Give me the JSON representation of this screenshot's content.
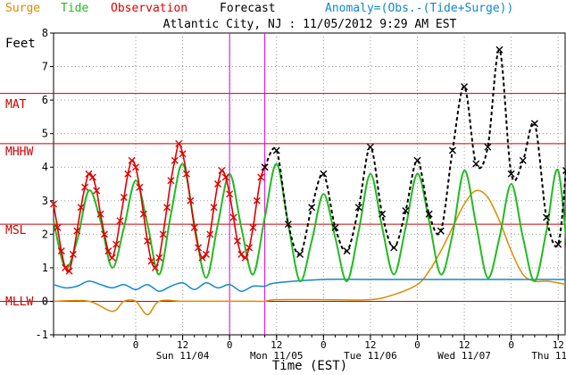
{
  "legend": {
    "surge": {
      "label": "Surge",
      "color": "#e08a00"
    },
    "tide": {
      "label": "Tide",
      "color": "#22bb22"
    },
    "observation": {
      "label": "Observation",
      "color": "#dd0000"
    },
    "forecast": {
      "label": "Forecast",
      "color": "#000000"
    },
    "anomaly": {
      "label": "Anomaly=(Obs.-(Tide+Surge))",
      "color": "#1188cc"
    }
  },
  "chart_data": {
    "type": "line",
    "title": "Atlantic City, NJ : 11/05/2012 9:29 AM EST",
    "ylabel": "Feet",
    "xlabel": "Time (EST)",
    "ylim": [
      -1,
      8
    ],
    "xlim_hours": [
      -21,
      110
    ],
    "yticks": [
      "-1",
      "0",
      "1",
      "2",
      "3",
      "4",
      "5",
      "6",
      "7",
      "8"
    ],
    "xticks": [
      {
        "hour": 0,
        "label": "0"
      },
      {
        "hour": 12,
        "label": "12"
      },
      {
        "hour": 24,
        "label": "0"
      },
      {
        "hour": 36,
        "label": "12"
      },
      {
        "hour": 48,
        "label": "0"
      },
      {
        "hour": 60,
        "label": "12"
      },
      {
        "hour": 72,
        "label": "0"
      },
      {
        "hour": 84,
        "label": "12"
      },
      {
        "hour": 96,
        "label": "0"
      },
      {
        "hour": 108,
        "label": "12"
      }
    ],
    "day_labels": [
      {
        "hour": 12,
        "label": "Sun 11/04"
      },
      {
        "hour": 36,
        "label": "Mon 11/05"
      },
      {
        "hour": 60,
        "label": "Tue 11/06"
      },
      {
        "hour": 84,
        "label": "Wed 11/07"
      },
      {
        "hour": 108,
        "label": "Thu 11/08"
      }
    ],
    "reference_lines": [
      {
        "label": "MAT",
        "value": 6.2,
        "color": "#cc0000"
      },
      {
        "label": "MHHW",
        "value": 4.7,
        "color": "#cc0000"
      },
      {
        "label": "MSL",
        "value": 2.3,
        "color": "#cc0000"
      },
      {
        "label": "MLLW",
        "value": 0.0,
        "color": "#cc0000"
      }
    ],
    "vertical_markers": [
      24,
      33
    ],
    "series": [
      {
        "name": "Tide",
        "color": "#22bb22",
        "x": [
          -21,
          -18,
          -15,
          -12,
          -9,
          -6,
          -3,
          0,
          3,
          6,
          9,
          12,
          15,
          18,
          21,
          24,
          27,
          30,
          33,
          36,
          39,
          42,
          45,
          48,
          51,
          54,
          57,
          60,
          63,
          66,
          69,
          72,
          75,
          78,
          81,
          84,
          87,
          90,
          93,
          96,
          99,
          102,
          105,
          108,
          111
        ],
        "y": [
          2.4,
          1.0,
          1.8,
          3.3,
          2.4,
          1.0,
          2.2,
          3.6,
          2.3,
          0.8,
          2.6,
          4.1,
          2.3,
          0.7,
          2.3,
          3.8,
          2.2,
          0.8,
          2.5,
          4.1,
          2.3,
          0.6,
          1.8,
          3.2,
          1.9,
          0.6,
          2.1,
          3.8,
          2.2,
          0.8,
          2.2,
          3.8,
          2.4,
          0.8,
          2.0,
          3.9,
          2.3,
          0.7,
          1.9,
          3.5,
          1.9,
          0.6,
          2.1,
          3.9,
          0.5
        ]
      },
      {
        "name": "Observation",
        "color": "#dd0000",
        "x": [
          -21,
          -20,
          -19,
          -18,
          -17,
          -16,
          -15,
          -14,
          -13,
          -12,
          -11,
          -10,
          -9,
          -8,
          -7,
          -6,
          -5,
          -4,
          -3,
          -2,
          -1,
          0,
          1,
          2,
          3,
          4,
          5,
          6,
          7,
          8,
          9,
          10,
          11,
          12,
          13,
          14,
          15,
          16,
          17,
          18,
          19,
          20,
          21,
          22,
          23,
          24,
          25,
          26,
          27,
          28,
          29,
          30,
          31,
          32,
          33
        ],
        "y": [
          2.9,
          2.2,
          1.5,
          1.0,
          0.9,
          1.4,
          2.1,
          2.8,
          3.4,
          3.8,
          3.7,
          3.3,
          2.6,
          2.0,
          1.5,
          1.3,
          1.7,
          2.4,
          3.1,
          3.8,
          4.2,
          4.0,
          3.4,
          2.6,
          1.8,
          1.2,
          1.0,
          1.3,
          2.0,
          2.8,
          3.6,
          4.2,
          4.7,
          4.4,
          3.8,
          3.0,
          2.2,
          1.6,
          1.3,
          1.4,
          2.0,
          2.8,
          3.5,
          3.9,
          3.7,
          3.2,
          2.5,
          1.8,
          1.4,
          1.3,
          1.6,
          2.2,
          3.0,
          3.7,
          4.0
        ]
      },
      {
        "name": "Forecast",
        "color": "#000000",
        "x": [
          33,
          36,
          39,
          42,
          45,
          48,
          51,
          54,
          57,
          60,
          63,
          66,
          69,
          72,
          75,
          78,
          81,
          84,
          87,
          90,
          93,
          96,
          99,
          102,
          105,
          108,
          110
        ],
        "y": [
          4.0,
          4.5,
          2.3,
          1.4,
          2.8,
          3.8,
          2.2,
          1.5,
          2.8,
          4.6,
          2.6,
          1.6,
          2.7,
          4.2,
          2.6,
          2.1,
          4.5,
          6.4,
          4.1,
          4.6,
          7.5,
          3.8,
          4.2,
          5.3,
          2.5,
          1.7,
          3.9
        ]
      },
      {
        "name": "Surge",
        "color": "#e08a00",
        "x": [
          -21,
          -12,
          -6,
          -3,
          0,
          3,
          6,
          12,
          18,
          24,
          30,
          33,
          36,
          48,
          60,
          66,
          72,
          75,
          78,
          81,
          84,
          87,
          90,
          93,
          96,
          99,
          102,
          105,
          108,
          110
        ],
        "y": [
          0.0,
          0.0,
          -0.3,
          0.0,
          0.0,
          -0.4,
          0.0,
          0.0,
          0.0,
          0.0,
          0.0,
          0.0,
          0.05,
          0.05,
          0.05,
          0.2,
          0.5,
          0.9,
          1.5,
          2.2,
          2.9,
          3.3,
          3.1,
          2.4,
          1.5,
          0.8,
          0.6,
          0.6,
          0.55,
          0.5
        ]
      },
      {
        "name": "Anomaly",
        "color": "#1188cc",
        "x": [
          -21,
          -18,
          -15,
          -12,
          -9,
          -6,
          -3,
          0,
          3,
          6,
          9,
          12,
          15,
          18,
          21,
          24,
          27,
          30,
          33,
          36,
          48,
          60,
          72,
          84,
          96,
          108,
          110
        ],
        "y": [
          0.5,
          0.4,
          0.45,
          0.6,
          0.5,
          0.4,
          0.5,
          0.35,
          0.5,
          0.3,
          0.45,
          0.55,
          0.35,
          0.55,
          0.4,
          0.5,
          0.3,
          0.45,
          0.45,
          0.55,
          0.65,
          0.65,
          0.65,
          0.65,
          0.65,
          0.65,
          0.65
        ]
      }
    ]
  }
}
